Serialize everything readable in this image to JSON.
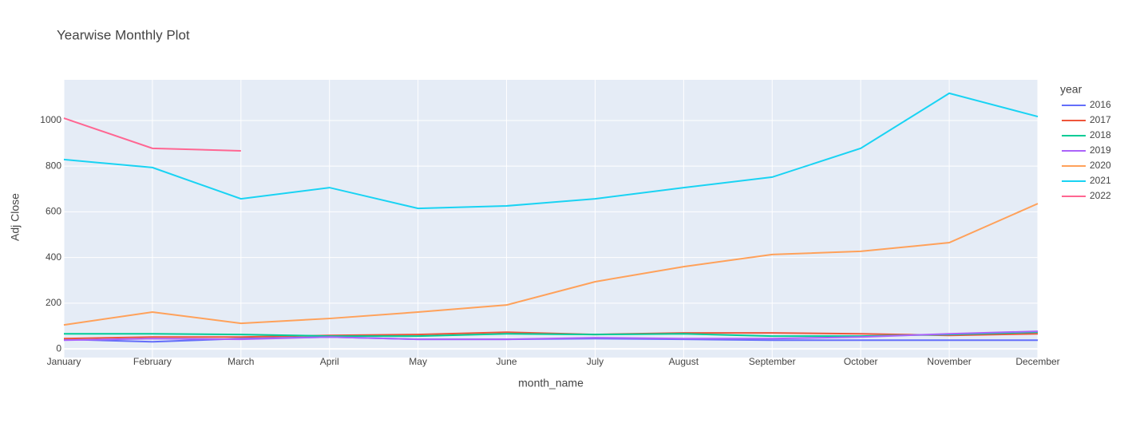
{
  "chart_data": {
    "type": "line",
    "title": "Yearwise Monthly Plot",
    "x_label": "month_name",
    "y_label": "Adj Close",
    "legend_title": "year",
    "legend": "right",
    "grid": true,
    "categories": [
      "January",
      "February",
      "March",
      "April",
      "May",
      "June",
      "July",
      "August",
      "September",
      "October",
      "November",
      "December"
    ],
    "ylim": [
      -38,
      1178
    ],
    "yticks": [
      0,
      200,
      400,
      600,
      800,
      1000
    ],
    "series": [
      {
        "name": "2016",
        "color": "#636efa",
        "values": [
          42,
          31,
          45,
          52,
          42,
          42,
          45,
          42,
          38,
          38,
          38,
          38
        ]
      },
      {
        "name": "2017",
        "color": "#EF553B",
        "values": [
          45,
          52,
          52,
          59,
          63,
          73,
          63,
          70,
          70,
          66,
          59,
          66
        ]
      },
      {
        "name": "2018",
        "color": "#00cc96",
        "values": [
          66,
          66,
          63,
          56,
          56,
          66,
          63,
          66,
          56,
          56,
          63,
          73
        ]
      },
      {
        "name": "2019",
        "color": "#ab63fa",
        "values": [
          38,
          45,
          42,
          52,
          42,
          42,
          49,
          45,
          45,
          52,
          66,
          77
        ]
      },
      {
        "name": "2020",
        "color": "#FFA15A",
        "values": [
          105,
          161,
          112,
          133,
          161,
          192,
          294,
          360,
          413,
          427,
          465,
          636
        ]
      },
      {
        "name": "2021",
        "color": "#19d3f3",
        "values": [
          829,
          794,
          657,
          706,
          615,
          626,
          657,
          706,
          752,
          878,
          1119,
          1017
        ]
      },
      {
        "name": "2022",
        "color": "#FF6692",
        "values": [
          1010,
          878,
          867,
          null,
          null,
          null,
          null,
          null,
          null,
          null,
          null,
          null
        ]
      }
    ]
  }
}
